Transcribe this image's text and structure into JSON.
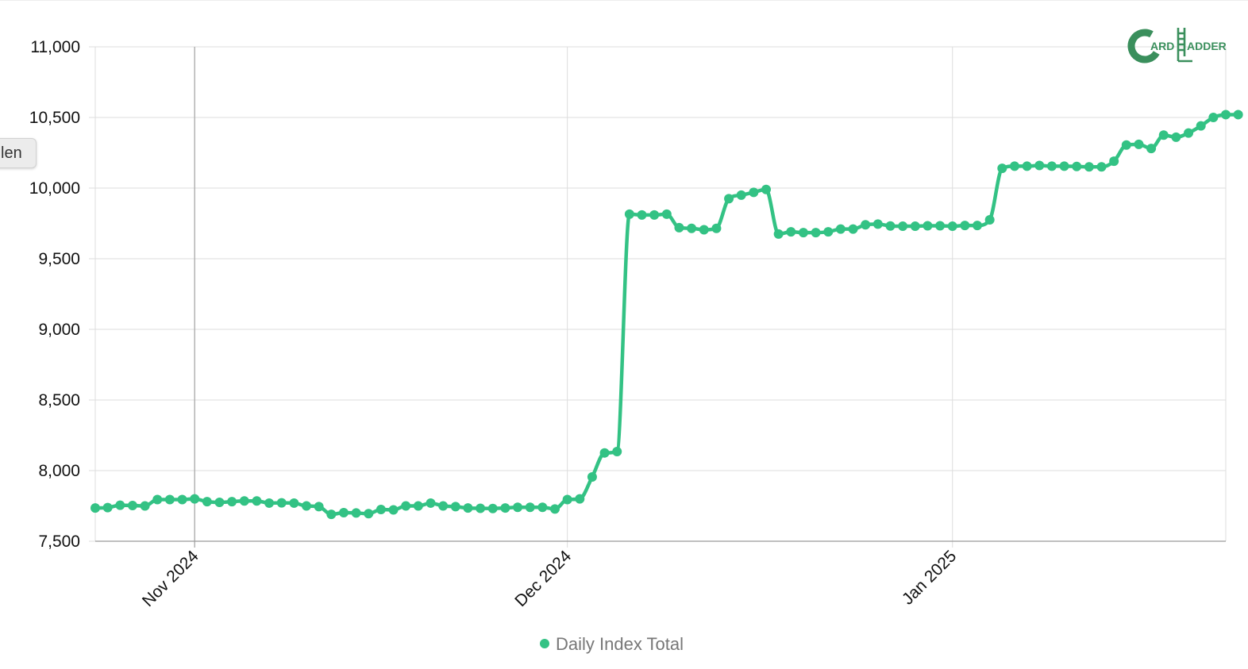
{
  "partial_tab": {
    "label": "len"
  },
  "logo": {
    "letter_c": "C",
    "word_card": "ARD",
    "letter_l": "L",
    "word_ladder": "ADDER",
    "color": "#3a8f5c",
    "icon": "ladder-icon"
  },
  "chart_data": {
    "type": "line",
    "title": "",
    "xlabel": "",
    "ylabel": "",
    "ylim": [
      7500,
      11000
    ],
    "yticks": [
      7500,
      8000,
      8500,
      9000,
      9500,
      10000,
      10500,
      11000
    ],
    "ytick_labels": [
      "7,500",
      "8,000",
      "8,500",
      "9,000",
      "9,500",
      "10,000",
      "10,500",
      "11,000"
    ],
    "xlim": [
      "2024-10-24",
      "2025-01-23"
    ],
    "xticks": [
      "2024-11-01",
      "2024-12-01",
      "2025-01-01"
    ],
    "xtick_labels": [
      "Nov 2024",
      "Dec 2024",
      "Jan 2025"
    ],
    "grid": true,
    "legend_position": "bottom",
    "series_color": "#33c284",
    "series": [
      {
        "name": "Daily Index Total",
        "x_start": "2024-10-24",
        "x_step_days": 1,
        "values": [
          7735,
          7738,
          7755,
          7753,
          7750,
          7795,
          7795,
          7795,
          7800,
          7780,
          7775,
          7780,
          7785,
          7785,
          7770,
          7772,
          7770,
          7750,
          7745,
          7690,
          7702,
          7700,
          7695,
          7725,
          7722,
          7750,
          7750,
          7770,
          7750,
          7745,
          7735,
          7733,
          7732,
          7735,
          7740,
          7740,
          7740,
          7728,
          7795,
          7800,
          7955,
          8125,
          8135,
          9815,
          9810,
          9810,
          9815,
          9720,
          9715,
          9705,
          9715,
          9925,
          9950,
          9970,
          9990,
          9675,
          9690,
          9685,
          9685,
          9690,
          9710,
          9710,
          9740,
          9745,
          9732,
          9730,
          9730,
          9733,
          9733,
          9730,
          9735,
          9735,
          9775,
          10140,
          10155,
          10155,
          10160,
          10155,
          10155,
          10153,
          10150,
          10150,
          10190,
          10305,
          10310,
          10280,
          10375,
          10360,
          10390,
          10440,
          10500,
          10520,
          10520
        ]
      }
    ]
  }
}
